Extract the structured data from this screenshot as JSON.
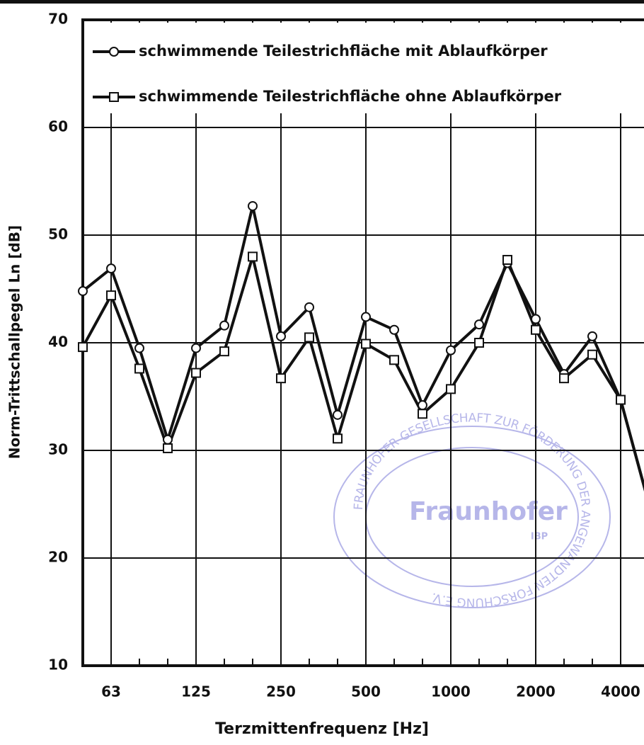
{
  "chart_data": {
    "type": "line",
    "xlabel": "Terzmittenfrequenz [Hz]",
    "ylabel": "Norm-Trittschallpegel Ln [dB]",
    "categories": [
      null,
      "63",
      null,
      null,
      "125",
      null,
      null,
      "250",
      null,
      null,
      "500",
      null,
      null,
      "1000",
      null,
      null,
      "2000",
      null,
      null,
      "4000",
      null
    ],
    "series": [
      {
        "name": "schwimmende Teilestrichfläche mit Ablaufkörper",
        "color": "#111111",
        "marker": "circle",
        "values": [
          44.8,
          46.9,
          39.5,
          31.0,
          39.5,
          41.6,
          52.7,
          40.6,
          43.3,
          33.3,
          42.4,
          41.2,
          34.2,
          39.3,
          41.7,
          47.4,
          42.2,
          37.1,
          40.6,
          34.7,
          25.0
        ]
      },
      {
        "name": "schwimmende Teilestrichfläche ohne Ablaufkörper",
        "color": "#111111",
        "marker": "square",
        "values": [
          39.6,
          44.4,
          37.6,
          30.2,
          37.2,
          39.2,
          48.0,
          36.7,
          40.5,
          31.1,
          39.9,
          38.4,
          33.4,
          35.7,
          40.0,
          47.7,
          41.2,
          36.7,
          38.9,
          34.7,
          25.0
        ]
      }
    ],
    "ylim": [
      10,
      70
    ],
    "yticks": [
      10,
      20,
      30,
      40,
      50,
      60,
      70
    ],
    "grid": true,
    "legend": "top-left",
    "watermark": {
      "ring": "FRAUNHOFER-GESELLSCHAFT ZUR FÖRDERUNG DER ANGEWANDTEN FORSCHUNG E.V.",
      "name": "Fraunhofer",
      "unit": "IBP"
    }
  }
}
